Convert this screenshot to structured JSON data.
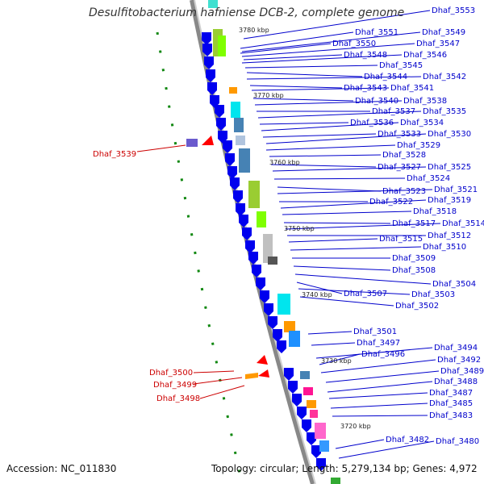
{
  "title": "Desulfitobacterium hafniense DCB-2, complete genome",
  "footer": {
    "accession": "Accession: NC_011830",
    "topology": "Topology: circular; Length: 5,279,134 bp; Genes: 4,972"
  },
  "kbp_ticks": [
    "3780 kbp",
    "3770 kbp",
    "3760 kbp",
    "3750 kbp",
    "3740 kbp",
    "3730 kbp",
    "3720 kbp"
  ],
  "colors": {
    "gene_arrow": "#0000ff",
    "label_blue": "#0000cc",
    "label_red": "#cc0000",
    "strand_green": "#007700"
  },
  "right_labels": [
    "Dhaf_3553",
    "Dhaf_3551",
    "Dhaf_3549",
    "Dhaf_3550",
    "Dhaf_3547",
    "Dhaf_3548",
    "Dhaf_3546",
    "Dhaf_3545",
    "Dhaf_3544",
    "Dhaf_3542",
    "Dhaf_3543",
    "Dhaf_3541",
    "Dhaf_3540",
    "Dhaf_3538",
    "Dhaf_3537",
    "Dhaf_3535",
    "Dhaf_3536",
    "Dhaf_3534",
    "Dhaf_3533",
    "Dhaf_3530",
    "Dhaf_3529",
    "Dhaf_3528",
    "Dhaf_3527",
    "Dhaf_3525",
    "Dhaf_3524",
    "Dhaf_3523",
    "Dhaf_3521",
    "Dhaf_3522",
    "Dhaf_3519",
    "Dhaf_3518",
    "Dhaf_3517",
    "Dhaf_3514",
    "Dhaf_3512",
    "Dhaf_3515",
    "Dhaf_3510",
    "Dhaf_3509",
    "Dhaf_3508",
    "Dhaf_3504",
    "Dhaf_3507",
    "Dhaf_3503",
    "Dhaf_3502",
    "Dhaf_3501",
    "Dhaf_3497",
    "Dhaf_3494",
    "Dhaf_3496",
    "Dhaf_3492",
    "Dhaf_3489",
    "Dhaf_3488",
    "Dhaf_3487",
    "Dhaf_3485",
    "Dhaf_3483",
    "Dhaf_3482",
    "Dhaf_3480"
  ],
  "left_labels": [
    "Dhaf_3539",
    "Dhaf_3500",
    "Dhaf_3499",
    "Dhaf_3498"
  ]
}
